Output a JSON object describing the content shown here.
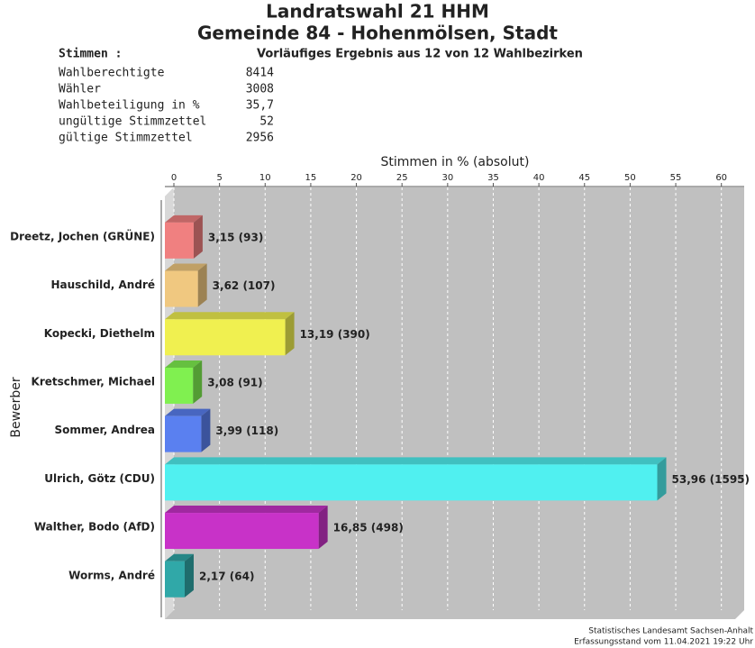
{
  "header": {
    "title_lines": [
      "Landratswahl 21 HHM",
      "Gemeinde 84 - Hohenmölsen, Stadt"
    ],
    "stimmen_heading": "Stimmen  :",
    "subtitle": "Vorläufiges Ergebnis aus 12 von 12 Wahlbezirken",
    "stats": [
      {
        "label": "Wahlberechtigte",
        "value": "8414"
      },
      {
        "label": "Wähler",
        "value": "3008"
      },
      {
        "label": "Wahlbeteiligung in %",
        "value": "35,7"
      },
      {
        "label": "ungültige Stimmzettel",
        "value": "52"
      },
      {
        "label": "gültige Stimmzettel",
        "value": "2956"
      }
    ]
  },
  "chart_data": {
    "type": "bar3d-horizontal",
    "x_label": "Stimmen in % (absolut)",
    "y_label": "Bewerber",
    "categories": [
      "Dreetz, Jochen (GRÜNE)",
      "Hauschild, André",
      "Kopecki, Diethelm",
      "Kretschmer, Michael",
      "Sommer, Andrea",
      "Ulrich, Götz (CDU)",
      "Walther, Bodo (AfD)",
      "Worms, André"
    ],
    "values": [
      3.15,
      3.62,
      13.19,
      3.08,
      3.99,
      53.96,
      16.85,
      2.17
    ],
    "value_labels": [
      "3,15 (93)",
      "3,62 (107)",
      "13,19 (390)",
      "3,08 (91)",
      "3,99 (118)",
      "53,96 (1595)",
      "16,85 (498)",
      "2,17 (64)"
    ],
    "colors": [
      "#f08080",
      "#f0c880",
      "#f0f050",
      "#80f050",
      "#5a80f0",
      "#50f0f0",
      "#c832c8",
      "#30a8a8"
    ],
    "xlim": [
      0,
      62.5
    ],
    "xticks": [
      0,
      5,
      10,
      15,
      20,
      25,
      30,
      35,
      40,
      45,
      50,
      55,
      60
    ],
    "grid": true
  },
  "footer": [
    "Statistisches Landesamt Sachsen-Anhalt",
    "Erfassungsstand vom 11.04.2021 19:22 Uhr"
  ]
}
